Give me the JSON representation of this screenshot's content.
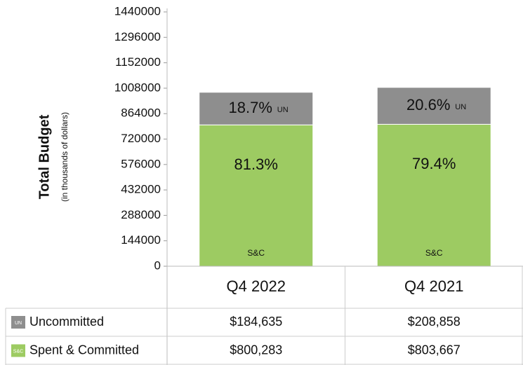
{
  "chart_data": {
    "type": "stacked_bar",
    "y_label": "Total Budget",
    "y_sublabel": "(in thousands of dollars)",
    "categories": [
      "Q4 2022",
      "Q4 2021"
    ],
    "series": [
      {
        "name": "Uncommitted",
        "short_name": "UN",
        "color": "#8e8e8e",
        "values": [
          184635,
          208858
        ],
        "value_labels": [
          "$184,635",
          "$208,858"
        ],
        "percent_labels": [
          "18.7%",
          "20.6%"
        ]
      },
      {
        "name": "Spent & Committed",
        "short_name": "S&C",
        "color": "#9dcb62",
        "values": [
          800283,
          803667
        ],
        "value_labels": [
          "$800,283",
          "$803,667"
        ],
        "percent_labels": [
          "81.3%",
          "79.4%"
        ]
      }
    ],
    "ylim": [
      0,
      1440000
    ],
    "yticks": [
      0,
      144000,
      288000,
      432000,
      576000,
      720000,
      864000,
      1008000,
      1152000,
      1296000,
      1440000
    ],
    "grid": false
  }
}
